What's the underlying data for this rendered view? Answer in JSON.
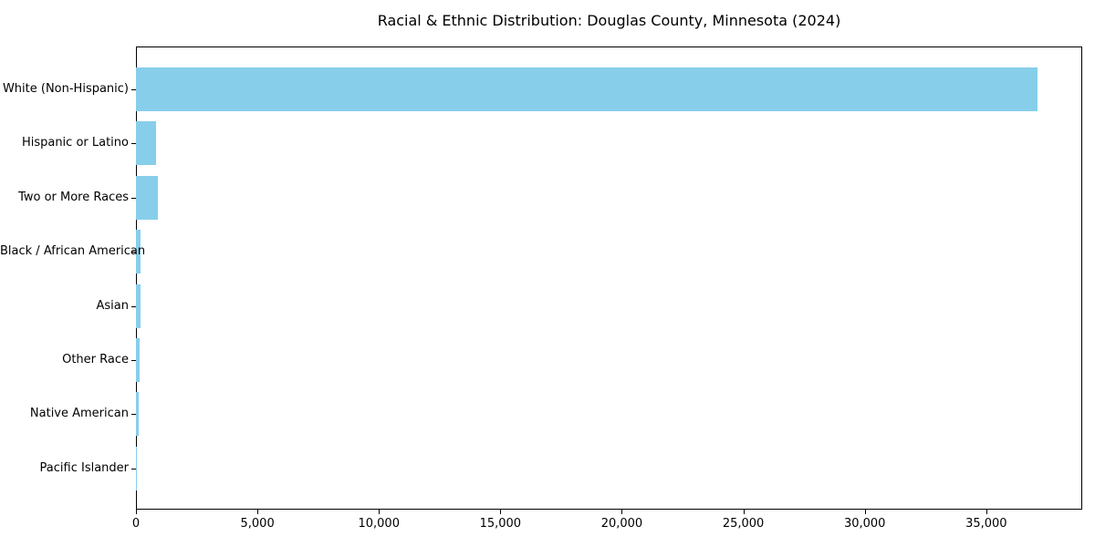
{
  "chart_data": {
    "type": "bar",
    "orientation": "horizontal",
    "title": "Racial & Ethnic Distribution: Douglas County, Minnesota (2024)",
    "categories": [
      "White (Non-Hispanic)",
      "Hispanic or Latino",
      "Two or More Races",
      "Black / African American",
      "Asian",
      "Other Race",
      "Native American",
      "Pacific Islander"
    ],
    "values": [
      37100,
      840,
      900,
      200,
      195,
      160,
      100,
      25
    ],
    "bar_color": "#87CEEB",
    "xlabel": "",
    "ylabel": "",
    "xlim": [
      0,
      38950
    ],
    "xtick_values": [
      0,
      5000,
      10000,
      15000,
      20000,
      25000,
      30000,
      35000
    ],
    "xtick_labels": [
      "0",
      "5,000",
      "10,000",
      "15,000",
      "20,000",
      "25,000",
      "30,000",
      "35,000"
    ],
    "grid": false,
    "legend_position": "none",
    "background_color": "#ffffff",
    "spine_color": "#000000"
  }
}
